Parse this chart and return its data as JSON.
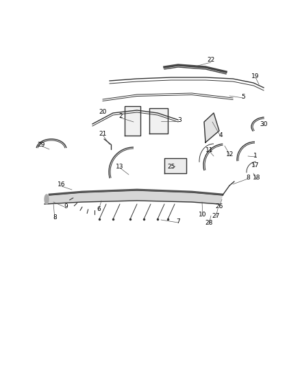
{
  "bg_color": "#ffffff",
  "line_color": "#333333",
  "figsize": [
    4.38,
    5.33
  ],
  "dpi": 100,
  "part_labels": [
    [
      "22",
      3.08,
      4.45
    ],
    [
      "19",
      3.73,
      4.22
    ],
    [
      "5",
      3.55,
      3.92
    ],
    [
      "30",
      3.85,
      3.52
    ],
    [
      "4",
      3.22,
      3.36
    ],
    [
      "3",
      2.62,
      3.58
    ],
    [
      "2",
      1.76,
      3.63
    ],
    [
      "20",
      1.5,
      3.7
    ],
    [
      "21",
      1.5,
      3.38
    ],
    [
      "29",
      0.6,
      3.22
    ],
    [
      "13",
      1.75,
      2.9
    ],
    [
      "11",
      3.06,
      3.14
    ],
    [
      "12",
      3.36,
      3.08
    ],
    [
      "1",
      3.73,
      3.06
    ],
    [
      "17",
      3.73,
      2.92
    ],
    [
      "18",
      3.75,
      2.73
    ],
    [
      "25",
      2.5,
      2.9
    ],
    [
      "16",
      0.9,
      2.63
    ],
    [
      "9",
      0.96,
      2.32
    ],
    [
      "8",
      0.8,
      2.15
    ],
    [
      "6",
      1.44,
      2.28
    ],
    [
      "7",
      2.6,
      2.1
    ],
    [
      "10",
      2.96,
      2.2
    ],
    [
      "26",
      3.2,
      2.32
    ],
    [
      "27",
      3.15,
      2.18
    ],
    [
      "28",
      3.05,
      2.08
    ],
    [
      "8",
      3.62,
      2.74
    ]
  ],
  "leader_lines": [
    [
      [
        3.08,
        4.42
      ],
      [
        2.85,
        4.36
      ]
    ],
    [
      [
        3.73,
        4.2
      ],
      [
        3.78,
        4.1
      ]
    ],
    [
      [
        3.55,
        3.9
      ],
      [
        3.35,
        3.93
      ]
    ],
    [
      [
        3.22,
        3.34
      ],
      [
        3.1,
        3.55
      ]
    ],
    [
      [
        1.76,
        3.61
      ],
      [
        1.95,
        3.55
      ]
    ],
    [
      [
        2.62,
        3.56
      ],
      [
        2.35,
        3.56
      ]
    ],
    [
      [
        1.5,
        3.68
      ],
      [
        1.5,
        3.7
      ]
    ],
    [
      [
        1.5,
        3.36
      ],
      [
        1.6,
        3.22
      ]
    ],
    [
      [
        0.6,
        3.2
      ],
      [
        0.72,
        3.15
      ]
    ],
    [
      [
        1.75,
        2.88
      ],
      [
        1.88,
        2.78
      ]
    ],
    [
      [
        0.9,
        2.61
      ],
      [
        1.05,
        2.56
      ]
    ],
    [
      [
        0.96,
        2.3
      ],
      [
        0.78,
        2.38
      ]
    ],
    [
      [
        0.8,
        2.13
      ],
      [
        0.78,
        2.36
      ]
    ],
    [
      [
        1.44,
        2.26
      ],
      [
        1.48,
        2.4
      ]
    ],
    [
      [
        2.6,
        2.08
      ],
      [
        2.35,
        2.12
      ]
    ],
    [
      [
        2.96,
        2.18
      ],
      [
        2.95,
        2.38
      ]
    ],
    [
      [
        3.06,
        3.12
      ],
      [
        3.12,
        3.05
      ]
    ],
    [
      [
        3.36,
        3.06
      ],
      [
        3.28,
        3.2
      ]
    ],
    [
      [
        3.73,
        3.04
      ],
      [
        3.62,
        3.05
      ]
    ],
    [
      [
        3.73,
        2.9
      ],
      [
        3.68,
        2.96
      ]
    ],
    [
      [
        3.75,
        2.71
      ],
      [
        3.7,
        2.8
      ]
    ],
    [
      [
        3.85,
        3.5
      ],
      [
        3.8,
        3.5
      ]
    ],
    [
      [
        2.5,
        2.88
      ],
      [
        2.56,
        2.9
      ]
    ],
    [
      [
        3.2,
        2.3
      ],
      [
        3.24,
        2.42
      ]
    ],
    [
      [
        3.15,
        2.16
      ],
      [
        3.18,
        2.28
      ]
    ],
    [
      [
        3.05,
        2.06
      ],
      [
        3.08,
        2.18
      ]
    ],
    [
      [
        3.62,
        2.72
      ],
      [
        3.4,
        2.64
      ]
    ]
  ]
}
